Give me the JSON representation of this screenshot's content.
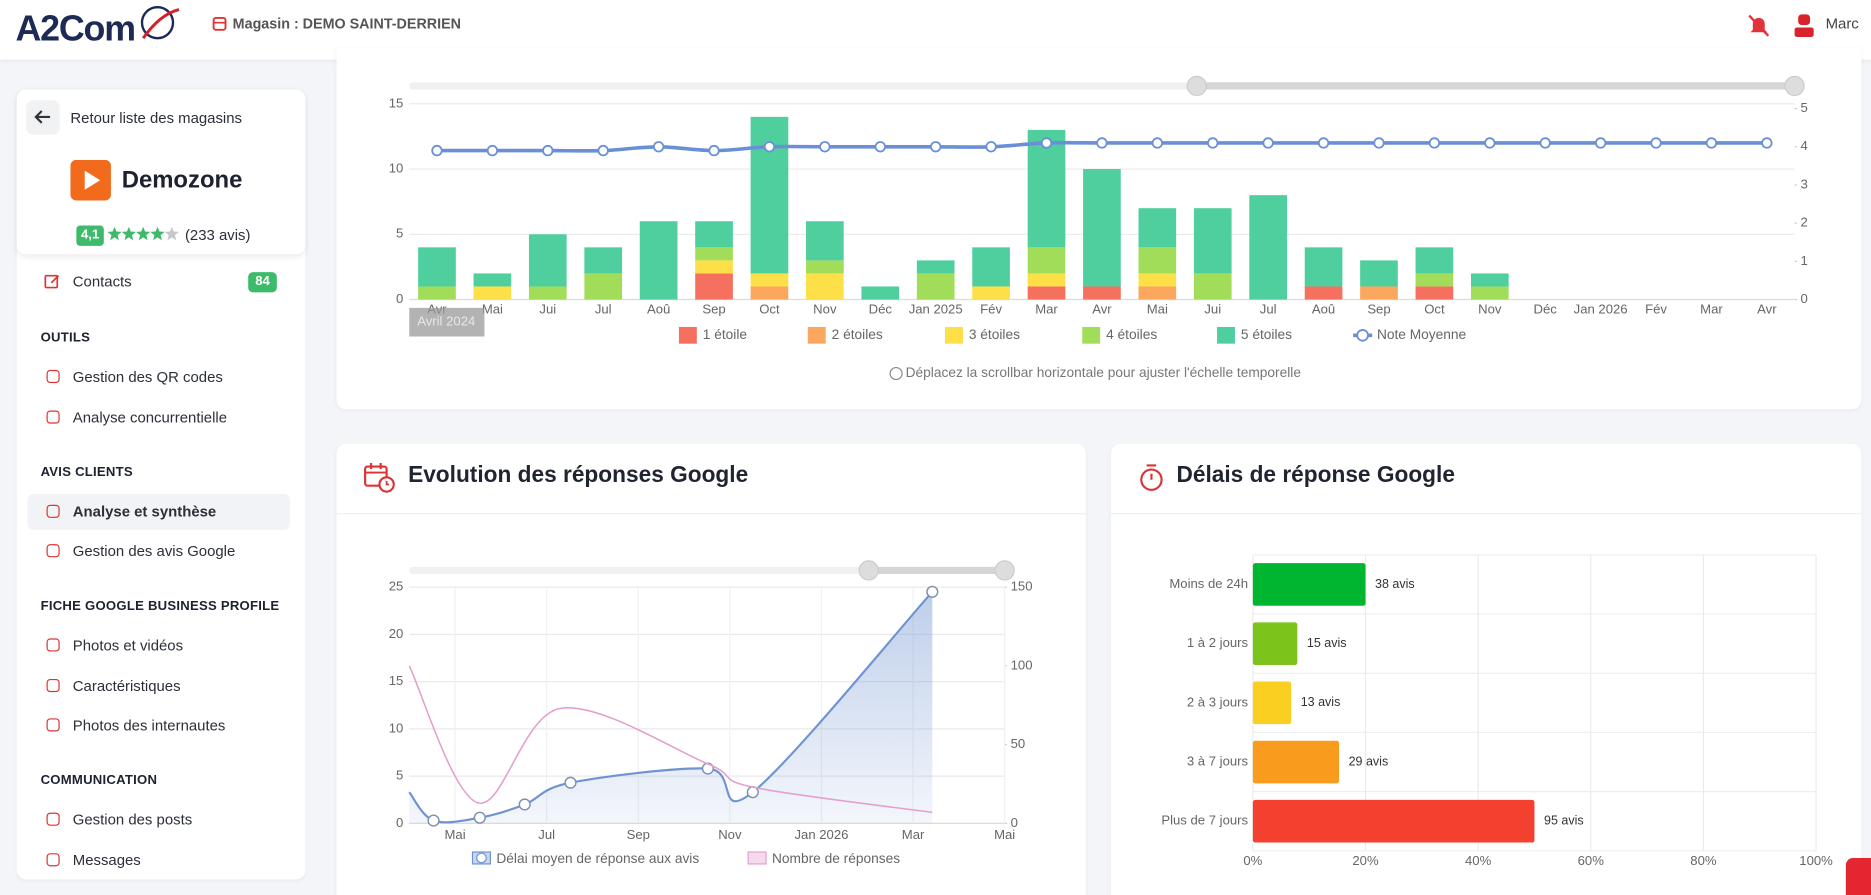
{
  "header": {
    "logo": "A2Com",
    "store": "Magasin : DEMO SAINT-DERRIEN",
    "user": "Marc"
  },
  "sidebar": {
    "back": "Retour liste des magasins",
    "business": "Demozone",
    "rating": "4,1",
    "reviews": "(233 avis)",
    "contacts": {
      "label": "Contacts",
      "count": 84
    },
    "active": [
      1,
      0
    ],
    "sections": [
      {
        "title": "OUTILS",
        "items": [
          "Gestion des QR codes",
          "Analyse concurrentielle"
        ]
      },
      {
        "title": "AVIS CLIENTS",
        "items": [
          "Analyse et synthèse",
          "Gestion des avis Google"
        ]
      },
      {
        "title": "FICHE GOOGLE BUSINESS PROFILE",
        "items": [
          "Photos et vidéos",
          "Caractéristiques",
          "Photos des internautes"
        ]
      },
      {
        "title": "COMMUNICATION",
        "items": [
          "Gestion des posts",
          "Messages"
        ]
      }
    ]
  },
  "chart_data": [
    {
      "type": "bar",
      "stacked": true,
      "categories": [
        "Avr",
        "Mai",
        "Jui",
        "Jul",
        "Aoû",
        "Sep",
        "Oct",
        "Nov",
        "Déc",
        "Jan 2025",
        "Fév",
        "Mar",
        "Avr",
        "Mai",
        "Jui",
        "Jul",
        "Aoû",
        "Sep",
        "Oct",
        "Nov",
        "Déc",
        "Jan 2026",
        "Fév",
        "Mar",
        "Avr"
      ],
      "series": [
        {
          "name": "1 étoile",
          "color": "#f6705f",
          "values": [
            0,
            0,
            0,
            0,
            0,
            2,
            0,
            0,
            0,
            0,
            0,
            1,
            1,
            0,
            0,
            0,
            1,
            0,
            1,
            0,
            null,
            null,
            null,
            null,
            null
          ]
        },
        {
          "name": "2 étoiles",
          "color": "#fba75e",
          "values": [
            0,
            0,
            0,
            0,
            0,
            0,
            1,
            0,
            0,
            0,
            0,
            0,
            0,
            1,
            0,
            0,
            0,
            1,
            0,
            0,
            null,
            null,
            null,
            null,
            null
          ]
        },
        {
          "name": "3 étoiles",
          "color": "#fde047",
          "values": [
            0,
            1,
            0,
            0,
            0,
            1,
            1,
            2,
            0,
            0,
            1,
            1,
            0,
            1,
            0,
            0,
            0,
            0,
            0,
            0,
            null,
            null,
            null,
            null,
            null
          ]
        },
        {
          "name": "4 étoiles",
          "color": "#a2dd5a",
          "values": [
            1,
            0,
            1,
            2,
            0,
            1,
            0,
            1,
            0,
            2,
            0,
            2,
            0,
            2,
            2,
            0,
            0,
            0,
            1,
            1,
            null,
            null,
            null,
            null,
            null
          ]
        },
        {
          "name": "5 étoiles",
          "color": "#4fcf9e",
          "values": [
            3,
            1,
            4,
            2,
            6,
            2,
            12,
            3,
            1,
            1,
            3,
            9,
            9,
            3,
            5,
            8,
            3,
            2,
            2,
            1,
            null,
            null,
            null,
            null,
            null
          ]
        },
        {
          "name": "Note Moyenne",
          "color": "#6b8fd6",
          "type": "line",
          "axis": "y2",
          "values": [
            3.9,
            3.9,
            3.9,
            3.9,
            4.0,
            3.9,
            4.0,
            4.0,
            4.0,
            4.0,
            4.0,
            4.1,
            4.1,
            4.1,
            4.1,
            4.1,
            4.1,
            4.1,
            4.1,
            4.1,
            4.1,
            4.1,
            4.1,
            4.1,
            4.1
          ]
        }
      ],
      "ylim": [
        0,
        15
      ],
      "yticks": [
        0,
        5,
        10,
        15
      ],
      "y2lim": [
        0,
        5
      ],
      "y2ticks": [
        0,
        1,
        2,
        3,
        4,
        5
      ],
      "grid": true,
      "hover_label": "Avril 2024",
      "note": "Déplacez la scrollbar horizontale pour ajuster l'échelle temporelle"
    },
    {
      "type": "line",
      "title": "Evolution des réponses Google",
      "xlim": [
        0,
        13
      ],
      "xticks": [
        {
          "value": 1,
          "label": "Mai"
        },
        {
          "value": 3,
          "label": "Jul"
        },
        {
          "value": 5,
          "label": "Sep"
        },
        {
          "value": 7,
          "label": "Nov"
        },
        {
          "value": 9,
          "label": "Jan 2026"
        },
        {
          "value": 11,
          "label": "Mar"
        },
        {
          "value": 13,
          "label": "Mai"
        }
      ],
      "ylim": [
        0,
        25
      ],
      "yticks": [
        0,
        5,
        10,
        15,
        20,
        25
      ],
      "y2lim": [
        0,
        150
      ],
      "y2ticks": [
        0,
        50,
        100,
        150
      ],
      "grid": true,
      "series": [
        {
          "name": "Délai moyen de réponse aux avis",
          "color": "#6f93d2",
          "fill": true,
          "x": [
            0,
            0.53,
            1.54,
            2.52,
            3.52,
            6.52,
            7.5,
            11.42
          ],
          "values": [
            3.3,
            0.3,
            0.6,
            2,
            4.3,
            5.8,
            3.3,
            24.5
          ]
        },
        {
          "name": "Nombre de réponses",
          "color": "#e3a0cd",
          "axis": "y2",
          "x": [
            0,
            1.5,
            3.3,
            6.5,
            7.5,
            11.42
          ],
          "values": [
            100,
            13,
            73,
            38,
            23,
            7
          ]
        }
      ]
    },
    {
      "type": "barh",
      "title": "Délais de réponse Google",
      "categories": [
        "Moins de 24h",
        "1 à 2 jours",
        "2 à 3 jours",
        "3 à 7 jours",
        "Plus de 7 jours"
      ],
      "values": [
        20,
        7.9,
        6.8,
        15.3,
        50
      ],
      "colors": [
        "#00b52f",
        "#7cc41c",
        "#fbcf22",
        "#f99b1c",
        "#f4402f"
      ],
      "count_labels": [
        "38 avis",
        "15 avis",
        "13 avis",
        "29 avis",
        "95 avis"
      ],
      "xlim": [
        0,
        100
      ],
      "xticks": [
        {
          "value": 0,
          "label": "0%"
        },
        {
          "value": 20,
          "label": "20%"
        },
        {
          "value": 40,
          "label": "40%"
        },
        {
          "value": 60,
          "label": "60%"
        },
        {
          "value": 80,
          "label": "80%"
        },
        {
          "value": 100,
          "label": "100%"
        }
      ],
      "grid": true
    }
  ]
}
